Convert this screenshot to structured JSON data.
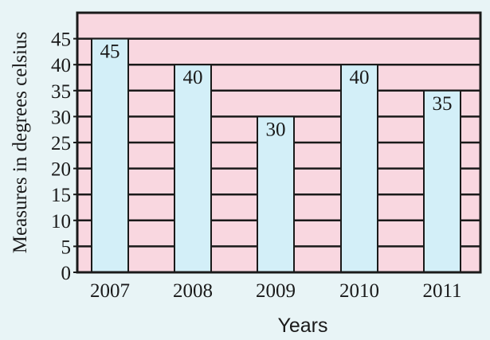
{
  "colors": {
    "page_background": "#e8f4f6",
    "plot_background": "#f9d7e0",
    "bar_fill": "#d3eff8",
    "bar_stroke": "#1a1a1a",
    "grid": "#1a1a1a",
    "frame": "#1a1a1a"
  },
  "chart_data": {
    "type": "bar",
    "title": "",
    "xlabel": "Years",
    "ylabel": "Measures in degrees celsius",
    "categories": [
      "2007",
      "2008",
      "2009",
      "2010",
      "2011"
    ],
    "values": [
      45,
      40,
      30,
      40,
      35
    ],
    "data_labels": [
      "45",
      "40",
      "30",
      "40",
      "35"
    ],
    "ylim": [
      0,
      50
    ],
    "y_ticks": [
      0,
      5,
      10,
      15,
      20,
      25,
      30,
      35,
      40,
      45
    ],
    "y_tick_labels": [
      "0",
      "5",
      "10",
      "15",
      "20",
      "25",
      "30",
      "35",
      "40",
      "45"
    ],
    "grid": true,
    "legend": "none"
  }
}
